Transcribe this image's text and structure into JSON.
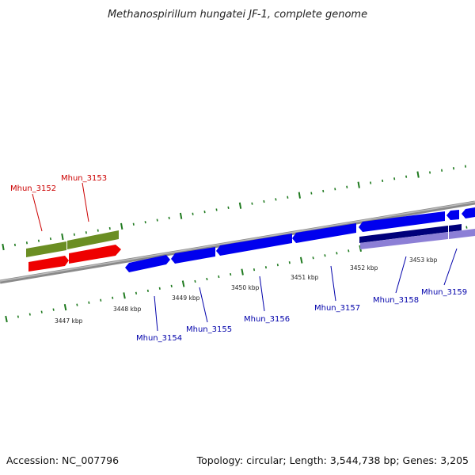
{
  "title": "Methanospirillum hungatei JF-1, complete genome",
  "footer": {
    "accession": "Accession: NC_007796",
    "summary": "Topology: circular; Length: 3,544,738 bp; Genes: 3,205"
  },
  "colors": {
    "background": "#ffffff",
    "backbone": "#8a8a8a",
    "tick": "#1f7a1f",
    "cds_forward": "#0000ee",
    "cds_dark": "#00007a",
    "cds_light": "#8c7fd6",
    "gene_green": "#6b8e23",
    "gene_red": "#ee0000",
    "label_blue": "#0000aa",
    "label_red": "#cc0000"
  },
  "scale_labels": [
    "3447 kbp",
    "3448 kbp",
    "3449 kbp",
    "3450 kbp",
    "3451 kbp",
    "3452 kbp",
    "3453 kbp"
  ],
  "gene_labels": [
    {
      "text": "Mhun_3152",
      "color": "red"
    },
    {
      "text": "Mhun_3153",
      "color": "red"
    },
    {
      "text": "Mhun_3154",
      "color": "blue"
    },
    {
      "text": "Mhun_3155",
      "color": "blue"
    },
    {
      "text": "Mhun_3156",
      "color": "blue"
    },
    {
      "text": "Mhun_3157",
      "color": "blue"
    },
    {
      "text": "Mhun_3158",
      "color": "blue"
    },
    {
      "text": "Mhun_3159",
      "color": "blue"
    }
  ]
}
